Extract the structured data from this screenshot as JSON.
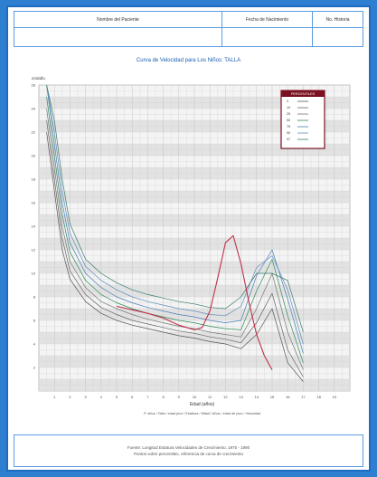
{
  "header": {
    "col1_label": "Nombre del Paciente",
    "col2_label": "Fecha de Nacimiento",
    "col3_label": "No. Historia"
  },
  "colors": {
    "frame": "#2f7fd0",
    "border": "#5a9be0",
    "grid": "#d6d6d6",
    "legend_border": "#7a1020"
  },
  "chart_data": {
    "type": "line",
    "title": "Curva de Velocidad para Los Niños: TALLA",
    "ylabel": "cm/año",
    "xlabel": "Edad (años)",
    "ylim": [
      0,
      26
    ],
    "xlim": [
      0,
      20
    ],
    "x_ticks": [
      1,
      2,
      3,
      4,
      5,
      6,
      7,
      8,
      9,
      10,
      11,
      12,
      13,
      14,
      15,
      16,
      17,
      18,
      19
    ],
    "y_ticks": [
      2,
      4,
      6,
      8,
      10,
      12,
      14,
      16,
      18,
      20,
      22,
      24,
      26
    ],
    "legend_title": "PERCENTILES",
    "legend": [
      "3",
      "10",
      "25",
      "50",
      "75",
      "90",
      "97"
    ],
    "caption": "P. años / Talla / edad pico / Estatura / Mitad / Años / edad de pico / Velocidad",
    "series": [
      {
        "name": "3",
        "color": "#555555",
        "x": [
          0.5,
          1,
          1.5,
          2,
          3,
          4,
          5,
          6,
          7,
          8,
          9,
          10,
          11,
          12,
          13,
          14,
          15,
          16,
          17
        ],
        "y": [
          22,
          17,
          12,
          9.5,
          7.6,
          6.6,
          6.0,
          5.6,
          5.3,
          5.0,
          4.7,
          4.5,
          4.2,
          4.0,
          3.6,
          4.8,
          7.0,
          2.4,
          0.8
        ]
      },
      {
        "name": "10",
        "color": "#666666",
        "x": [
          0.5,
          1,
          1.5,
          2,
          3,
          4,
          5,
          6,
          7,
          8,
          9,
          10,
          11,
          12,
          13,
          14,
          15,
          16,
          17
        ],
        "y": [
          23,
          18,
          13,
          10.2,
          8.2,
          7.1,
          6.5,
          6.0,
          5.7,
          5.4,
          5.1,
          4.9,
          4.6,
          4.4,
          4.1,
          5.8,
          8.3,
          3.5,
          1.2
        ]
      },
      {
        "name": "25",
        "color": "#777777",
        "x": [
          0.5,
          1,
          1.5,
          2,
          3,
          4,
          5,
          6,
          7,
          8,
          9,
          10,
          11,
          12,
          13,
          14,
          15,
          16,
          17
        ],
        "y": [
          24,
          19,
          14,
          11.0,
          8.8,
          7.6,
          7.0,
          6.5,
          6.1,
          5.8,
          5.5,
          5.3,
          5.0,
          4.8,
          4.6,
          7.0,
          10.0,
          5.0,
          1.8
        ]
      },
      {
        "name": "50",
        "color": "#2e8b57",
        "x": [
          0.5,
          1,
          1.5,
          2,
          3,
          4,
          5,
          6,
          7,
          8,
          9,
          10,
          11,
          12,
          13,
          14,
          15,
          16,
          17
        ],
        "y": [
          25,
          20,
          15,
          11.8,
          9.4,
          8.2,
          7.5,
          7.0,
          6.6,
          6.3,
          6.0,
          5.8,
          5.5,
          5.3,
          5.2,
          8.5,
          11.2,
          6.4,
          2.4
        ]
      },
      {
        "name": "75",
        "color": "#4a7fb8",
        "x": [
          0.5,
          1,
          1.5,
          2,
          3,
          4,
          5,
          6,
          7,
          8,
          9,
          10,
          11,
          12,
          13,
          14,
          15,
          16,
          17
        ],
        "y": [
          26,
          21,
          16,
          12.6,
          10.0,
          8.8,
          8.0,
          7.5,
          7.1,
          6.8,
          6.5,
          6.3,
          6.0,
          5.8,
          6.0,
          9.8,
          12.0,
          7.8,
          3.2
        ]
      },
      {
        "name": "90",
        "color": "#5f8fbf",
        "x": [
          0.5,
          1,
          1.5,
          2,
          3,
          4,
          5,
          6,
          7,
          8,
          9,
          10,
          11,
          12,
          13,
          14,
          15,
          16,
          17
        ],
        "y": [
          26,
          22,
          17,
          13.4,
          10.6,
          9.4,
          8.6,
          8.0,
          7.6,
          7.3,
          7.0,
          6.8,
          6.5,
          6.4,
          7.2,
          10.5,
          11.5,
          8.6,
          4.0
        ]
      },
      {
        "name": "97",
        "color": "#3a7a6a",
        "x": [
          0.5,
          1,
          1.5,
          2,
          3,
          4,
          5,
          6,
          7,
          8,
          9,
          10,
          11,
          12,
          13,
          14,
          15,
          16,
          17
        ],
        "y": [
          26,
          23,
          18,
          14.2,
          11.2,
          10.0,
          9.2,
          8.6,
          8.2,
          7.9,
          7.6,
          7.4,
          7.1,
          7.0,
          8.0,
          10.0,
          10.0,
          9.4,
          5.0
        ]
      },
      {
        "name": "",
        "color": "#c0304a",
        "x": [
          5,
          6,
          7,
          8,
          9,
          10,
          10.5,
          11,
          11.5,
          12,
          12.5,
          13,
          13.5,
          14,
          14.5,
          15
        ],
        "y": [
          7.2,
          6.9,
          6.6,
          6.2,
          5.6,
          5.2,
          5.4,
          6.8,
          9.6,
          12.6,
          13.2,
          10.8,
          7.6,
          4.8,
          3.0,
          1.8
        ]
      }
    ]
  },
  "footer": {
    "line1": "Fuente: Longitud Estatura Velocidades de Crecimiento. 1970 - 1990",
    "line2": "Puntos sobre percentiles, referencia de curva de crecimiento"
  }
}
